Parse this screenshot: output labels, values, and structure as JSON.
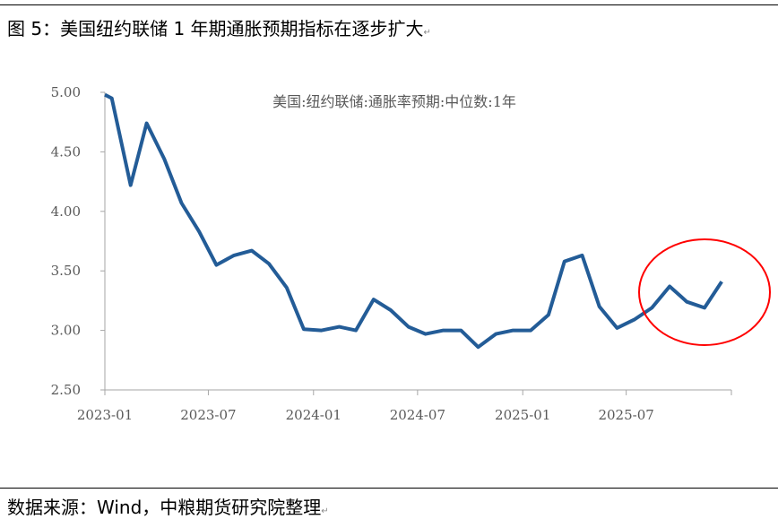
{
  "title": "图 5：美国纽约联储 1 年期通胀预期指标在逐步扩大",
  "source": "数据来源：Wind，中粮期货研究院整理",
  "paragraph_mark": "↵",
  "colors": {
    "line": "#235C97",
    "highlight": "#FF0000",
    "axis": "#A6A6A6",
    "text": "#595959"
  },
  "chart_data": {
    "type": "line",
    "title": "",
    "legend": {
      "text": "美国:纽约联储:通胀率预期:中位数:1年",
      "placement": "top-center"
    },
    "xlabel": "",
    "ylabel": "",
    "ylim": [
      2.5,
      5.0
    ],
    "yticks": [
      "5.00",
      "4.50",
      "4.00",
      "3.50",
      "3.00",
      "2.50"
    ],
    "xticks": [
      "2023-01",
      "2023-07",
      "2024-01",
      "2024-07",
      "2025-01",
      "2025-07"
    ],
    "xlim": [
      "2023-01-01",
      "2026-01-01"
    ],
    "grid": false,
    "highlight": "red ellipse around 2025-08 to 2025-12",
    "series": [
      {
        "x": [
          "2023-01-01",
          "2023-01-13",
          "2023-02-15",
          "2023-03-15",
          "2023-04-15",
          "2023-05-15",
          "2023-06-15",
          "2023-07-15",
          "2023-08-15",
          "2023-09-15",
          "2023-10-15",
          "2023-11-15",
          "2023-12-15",
          "2024-01-15",
          "2024-02-15",
          "2024-03-15",
          "2024-04-15",
          "2024-05-15",
          "2024-06-15",
          "2024-07-15",
          "2024-08-15",
          "2024-09-15",
          "2024-10-15",
          "2024-11-15",
          "2024-12-15",
          "2025-01-15",
          "2025-02-15",
          "2025-03-15",
          "2025-04-15",
          "2025-05-15",
          "2025-06-15",
          "2025-07-15",
          "2025-08-15",
          "2025-09-15",
          "2025-10-15",
          "2025-11-15",
          "2025-12-15"
        ],
        "values": [
          4.98,
          4.95,
          4.22,
          4.74,
          4.44,
          4.07,
          3.83,
          3.55,
          3.63,
          3.67,
          3.56,
          3.36,
          3.01,
          3.0,
          3.03,
          3.0,
          3.26,
          3.17,
          3.03,
          2.97,
          3.0,
          3.0,
          2.86,
          2.97,
          3.0,
          3.0,
          3.13,
          3.58,
          3.63,
          3.2,
          3.02,
          3.09,
          3.19,
          3.37,
          3.24,
          3.19,
          3.41
        ]
      }
    ]
  }
}
